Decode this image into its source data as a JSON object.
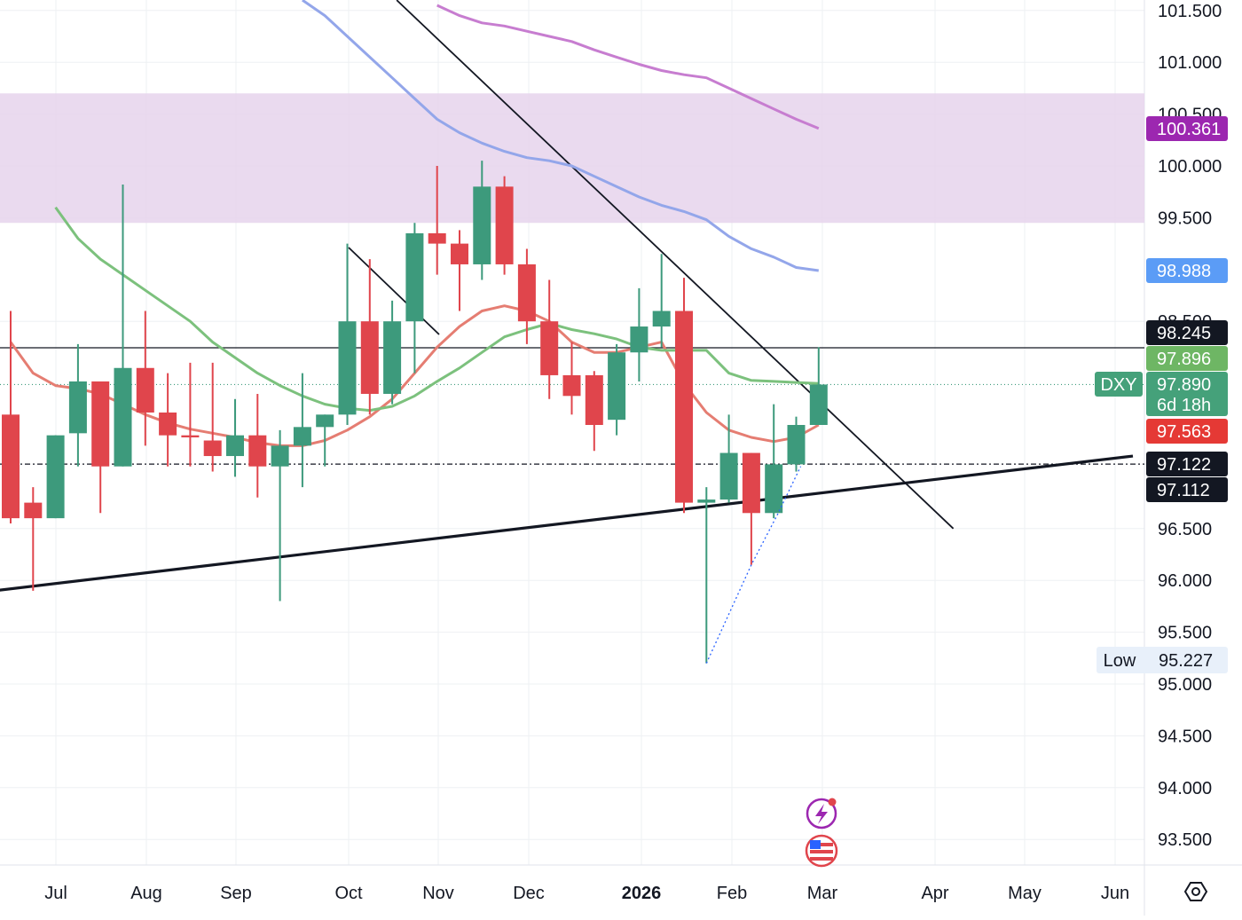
{
  "chart_data": {
    "type": "candlestick",
    "symbol": "DXY",
    "x_axis_ticks": [
      "Jul",
      "Aug",
      "Sep",
      "Oct",
      "Nov",
      "Dec",
      "2026",
      "Feb",
      "Mar",
      "Apr",
      "May",
      "Jun"
    ],
    "y_axis_ticks": [
      "101.500",
      "101.000",
      "100.500",
      "100.000",
      "99.500",
      "98.500",
      "96.500",
      "96.000",
      "95.500",
      "95.000",
      "94.500",
      "94.000",
      "93.500"
    ],
    "ylim": [
      93.25,
      101.6
    ],
    "resistance_zone": [
      99.45,
      100.7
    ],
    "candles": [
      {
        "o": 97.6,
        "h": 98.6,
        "l": 96.55,
        "c": 96.6
      },
      {
        "o": 96.75,
        "h": 96.9,
        "l": 95.9,
        "c": 96.6
      },
      {
        "o": 96.6,
        "h": 97.4,
        "l": 96.6,
        "c": 97.4
      },
      {
        "o": 97.42,
        "h": 98.28,
        "l": 97.1,
        "c": 97.92
      },
      {
        "o": 97.92,
        "h": 97.92,
        "l": 96.65,
        "c": 97.1
      },
      {
        "o": 97.1,
        "h": 99.82,
        "l": 97.1,
        "c": 98.05
      },
      {
        "o": 98.05,
        "h": 98.6,
        "l": 97.3,
        "c": 97.62
      },
      {
        "o": 97.62,
        "h": 98.0,
        "l": 97.1,
        "c": 97.4
      },
      {
        "o": 97.4,
        "h": 98.1,
        "l": 97.1,
        "c": 97.38
      },
      {
        "o": 97.35,
        "h": 98.1,
        "l": 97.05,
        "c": 97.2
      },
      {
        "o": 97.2,
        "h": 97.75,
        "l": 97.0,
        "c": 97.4
      },
      {
        "o": 97.4,
        "h": 97.8,
        "l": 96.8,
        "c": 97.1
      },
      {
        "o": 97.1,
        "h": 97.45,
        "l": 95.8,
        "c": 97.3
      },
      {
        "o": 97.3,
        "h": 98.0,
        "l": 96.9,
        "c": 97.48
      },
      {
        "o": 97.48,
        "h": 97.6,
        "l": 97.1,
        "c": 97.6
      },
      {
        "o": 97.6,
        "h": 99.25,
        "l": 97.5,
        "c": 98.5
      },
      {
        "o": 98.5,
        "h": 99.1,
        "l": 97.6,
        "c": 97.8
      },
      {
        "o": 97.8,
        "h": 98.7,
        "l": 97.7,
        "c": 98.5
      },
      {
        "o": 98.5,
        "h": 99.45,
        "l": 98.0,
        "c": 99.35
      },
      {
        "o": 99.35,
        "h": 100.0,
        "l": 98.95,
        "c": 99.25
      },
      {
        "o": 99.25,
        "h": 99.38,
        "l": 98.6,
        "c": 99.05
      },
      {
        "o": 99.05,
        "h": 100.05,
        "l": 98.9,
        "c": 99.8
      },
      {
        "o": 99.8,
        "h": 99.9,
        "l": 98.95,
        "c": 99.05
      },
      {
        "o": 99.05,
        "h": 99.2,
        "l": 98.28,
        "c": 98.5
      },
      {
        "o": 98.5,
        "h": 98.9,
        "l": 97.75,
        "c": 97.98
      },
      {
        "o": 97.98,
        "h": 98.3,
        "l": 97.6,
        "c": 97.78
      },
      {
        "o": 97.98,
        "h": 98.02,
        "l": 97.25,
        "c": 97.5
      },
      {
        "o": 97.55,
        "h": 98.28,
        "l": 97.4,
        "c": 98.2
      },
      {
        "o": 98.2,
        "h": 98.82,
        "l": 97.92,
        "c": 98.45
      },
      {
        "o": 98.45,
        "h": 99.15,
        "l": 98.25,
        "c": 98.6
      },
      {
        "o": 98.6,
        "h": 98.92,
        "l": 96.65,
        "c": 96.75
      },
      {
        "o": 96.75,
        "h": 96.9,
        "l": 95.2,
        "c": 96.78
      },
      {
        "o": 96.78,
        "h": 97.6,
        "l": 96.75,
        "c": 97.23
      },
      {
        "o": 97.23,
        "h": 97.23,
        "l": 96.15,
        "c": 96.65
      },
      {
        "o": 96.65,
        "h": 97.7,
        "l": 96.6,
        "c": 97.12
      },
      {
        "o": 97.12,
        "h": 97.58,
        "l": 97.05,
        "c": 97.5
      },
      {
        "o": 97.5,
        "h": 98.25,
        "l": 97.5,
        "c": 97.89
      }
    ],
    "moving_averages": [
      {
        "color": "#e57d72",
        "values": [
          98.3,
          98.0,
          97.88,
          97.85,
          97.8,
          97.7,
          97.6,
          97.52,
          97.46,
          97.42,
          97.38,
          97.33,
          97.3,
          97.3,
          97.35,
          97.45,
          97.58,
          97.75,
          98.0,
          98.25,
          98.45,
          98.6,
          98.65,
          98.6,
          98.5,
          98.3,
          98.2,
          98.2,
          98.25,
          98.3,
          97.9,
          97.62,
          97.45,
          97.38,
          97.34,
          97.38,
          97.5
        ]
      },
      {
        "color": "#7cc17d",
        "values": [
          99.6,
          99.3,
          99.1,
          98.95,
          98.8,
          98.65,
          98.5,
          98.3,
          98.15,
          98.0,
          97.88,
          97.78,
          97.7,
          97.66,
          97.64,
          97.68,
          97.78,
          97.92,
          98.05,
          98.2,
          98.35,
          98.42,
          98.48,
          98.42,
          98.38,
          98.33,
          98.25,
          98.22,
          98.22,
          98.22,
          98.0,
          97.93,
          97.92,
          97.91,
          97.9
        ]
      },
      {
        "color": "#93a6ea",
        "values": [
          101.6,
          101.45,
          101.25,
          101.05,
          100.85,
          100.65,
          100.45,
          100.32,
          100.22,
          100.14,
          100.08,
          100.05,
          100.0,
          99.9,
          99.8,
          99.7,
          99.62,
          99.56,
          99.48,
          99.32,
          99.2,
          99.12,
          99.02,
          98.99
        ]
      },
      {
        "color": "#c77dd0",
        "values": [
          101.55,
          101.45,
          101.38,
          101.35,
          101.3,
          101.25,
          101.2,
          101.12,
          101.05,
          100.98,
          100.92,
          100.88,
          100.85,
          100.75,
          100.65,
          100.55,
          100.45,
          100.361
        ]
      }
    ],
    "trendlines": [
      {
        "name": "support",
        "from": {
          "i": -1.5,
          "p": 95.88
        },
        "to": {
          "i": 50,
          "p": 97.2
        }
      },
      {
        "name": "resistance",
        "from": {
          "i": 17.2,
          "p": 101.6
        },
        "to": {
          "i": 42,
          "p": 96.5
        }
      }
    ],
    "horizontal_lines": [
      {
        "price": 98.245,
        "style": "solid"
      },
      {
        "price": 97.122,
        "style": "dash-dot"
      },
      {
        "price": 97.89,
        "style": "dotted"
      }
    ],
    "price_labels": [
      {
        "value": "100.361",
        "bg": "#9c27b0"
      },
      {
        "value": "98.988",
        "bg": "#5b9cf6"
      },
      {
        "value": "98.245",
        "bg": "#131722"
      },
      {
        "value": "97.896",
        "bg": "#6eb664"
      },
      {
        "value": "97.890",
        "bg": "#45a17a",
        "symbol": "DXY",
        "countdown": "6d 18h"
      },
      {
        "value": "97.563",
        "bg": "#e53935"
      },
      {
        "value": "97.122",
        "bg": "#131722"
      },
      {
        "value": "97.112",
        "bg": "#131722"
      },
      {
        "value": "95.227",
        "label": "Low",
        "bg": "#e8f0fa"
      }
    ],
    "colors": {
      "up": "#3d9a7c",
      "down": "#e0454c",
      "zone": "#e6d4ec"
    },
    "icons": [
      "lightning-event-icon",
      "us-flag-icon",
      "settings-icon"
    ]
  }
}
